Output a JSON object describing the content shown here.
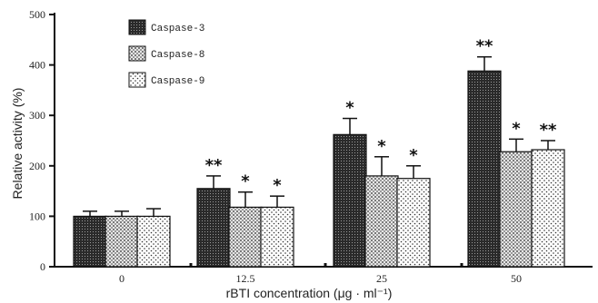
{
  "chart_data": {
    "type": "bar",
    "title": "",
    "xlabel": "rBTI concentration (μg · ml⁻¹)",
    "ylabel": "Relative activity (%)",
    "ylim": [
      0,
      500
    ],
    "yticks": [
      0,
      100,
      200,
      300,
      400,
      500
    ],
    "categories": [
      "0",
      "12.5",
      "25",
      "50"
    ],
    "series": [
      {
        "name": "Caspase-3",
        "values": [
          100,
          155,
          262,
          388
        ],
        "errors": [
          10,
          25,
          32,
          28
        ],
        "significance": [
          "",
          "**",
          "*",
          "**"
        ],
        "pattern": "dense-dots"
      },
      {
        "name": "Caspase-8",
        "values": [
          100,
          118,
          180,
          228
        ],
        "errors": [
          10,
          30,
          38,
          25
        ],
        "significance": [
          "",
          "*",
          "*",
          "*"
        ],
        "pattern": "grid"
      },
      {
        "name": "Caspase-9",
        "values": [
          100,
          118,
          175,
          232
        ],
        "errors": [
          15,
          22,
          25,
          18
        ],
        "significance": [
          "",
          "*",
          "*",
          "**"
        ],
        "pattern": "sparse-dots"
      }
    ],
    "legend": "top-left",
    "grid": false
  }
}
